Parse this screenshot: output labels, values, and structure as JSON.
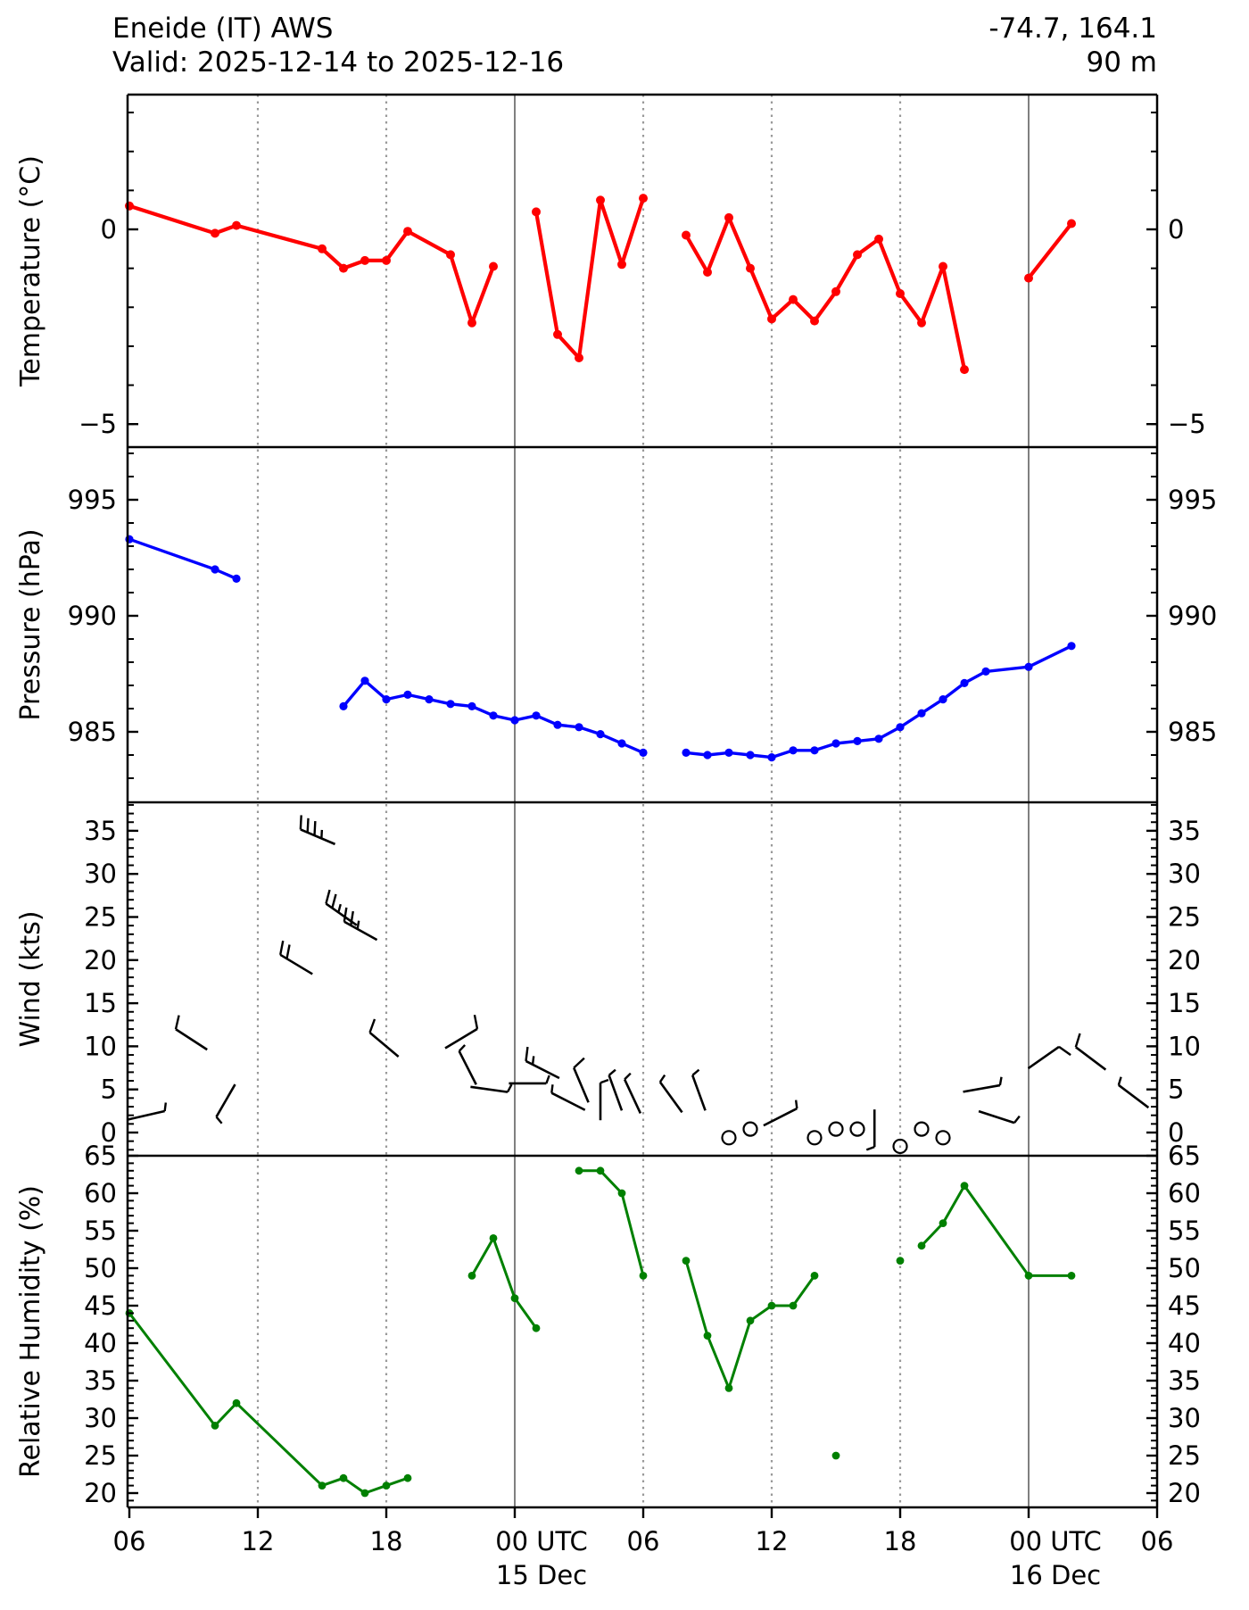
{
  "header": {
    "station": "Eneide (IT) AWS",
    "valid": "Valid: 2025-12-14 to 2025-12-16",
    "coords": "-74.7, 164.1",
    "elevation": "90 m"
  },
  "x_axis": {
    "unit": "hours since 2025-12-14 06:00 UTC",
    "ticks": [
      {
        "t": 0,
        "label": "06"
      },
      {
        "t": 6,
        "label": "12"
      },
      {
        "t": 12,
        "label": "18"
      },
      {
        "t": 18,
        "label": "00 UTC",
        "sub": "15 Dec"
      },
      {
        "t": 24,
        "label": "06"
      },
      {
        "t": 30,
        "label": "12"
      },
      {
        "t": 36,
        "label": "18"
      },
      {
        "t": 42,
        "label": "00 UTC",
        "sub": "16 Dec"
      },
      {
        "t": 48,
        "label": "06"
      }
    ],
    "gridlines": [
      {
        "t": 6,
        "style": "dotted"
      },
      {
        "t": 12,
        "style": "dotted"
      },
      {
        "t": 18,
        "style": "solid"
      },
      {
        "t": 24,
        "style": "dotted"
      },
      {
        "t": 30,
        "style": "dotted"
      },
      {
        "t": 36,
        "style": "dotted"
      },
      {
        "t": 42,
        "style": "solid"
      }
    ]
  },
  "chart_data": [
    {
      "type": "line",
      "id": "temperature",
      "ylabel": "Temperature (°C)",
      "color": "#ff0000",
      "ylim": [
        -5.6,
        3.5
      ],
      "yticks_major": [
        0,
        -5
      ],
      "ytick_labels": [
        "0",
        "−5"
      ],
      "yticks_minor_step": 1,
      "segments": [
        [
          [
            0,
            0.6
          ],
          [
            4,
            -0.1
          ],
          [
            5,
            0.1
          ],
          [
            9,
            -0.5
          ],
          [
            10,
            -1.0
          ],
          [
            11,
            -0.8
          ],
          [
            12,
            -0.8
          ],
          [
            13,
            -0.05
          ],
          [
            15,
            -0.65
          ],
          [
            16,
            -2.4
          ],
          [
            17,
            -0.95
          ]
        ],
        [
          [
            19,
            0.45
          ],
          [
            20,
            -2.7
          ],
          [
            21,
            -3.3
          ],
          [
            22,
            0.75
          ],
          [
            23,
            -0.9
          ],
          [
            24,
            0.8
          ]
        ],
        [
          [
            26,
            -0.15
          ],
          [
            27,
            -1.1
          ],
          [
            28,
            0.3
          ],
          [
            29,
            -1.0
          ],
          [
            30,
            -2.3
          ],
          [
            31,
            -1.8
          ],
          [
            32,
            -2.35
          ],
          [
            33,
            -1.6
          ],
          [
            34,
            -0.65
          ],
          [
            35,
            -0.25
          ],
          [
            36,
            -1.65
          ],
          [
            37,
            -2.4
          ],
          [
            38,
            -0.95
          ],
          [
            39,
            -3.6
          ]
        ],
        [
          [
            42,
            -1.25
          ],
          [
            44,
            0.15
          ]
        ]
      ]
    },
    {
      "type": "line",
      "id": "pressure",
      "ylabel": "Pressure (hPa)",
      "color": "#0000ff",
      "ylim": [
        981.9,
        997.3
      ],
      "yticks_major": [
        995,
        990,
        985
      ],
      "ytick_labels": [
        "995",
        "990",
        "985"
      ],
      "yticks_minor_step": 1,
      "segments": [
        [
          [
            0,
            993.3
          ],
          [
            4,
            992.0
          ],
          [
            5,
            991.6
          ]
        ],
        [
          [
            10,
            986.1
          ],
          [
            11,
            987.2
          ],
          [
            12,
            986.4
          ],
          [
            13,
            986.6
          ],
          [
            14,
            986.4
          ],
          [
            15,
            986.2
          ],
          [
            16,
            986.1
          ],
          [
            17,
            985.7
          ],
          [
            18,
            985.5
          ],
          [
            19,
            985.7
          ],
          [
            20,
            985.3
          ],
          [
            21,
            985.2
          ],
          [
            22,
            984.9
          ],
          [
            23,
            984.5
          ],
          [
            24,
            984.1
          ]
        ],
        [
          [
            26,
            984.1
          ],
          [
            27,
            984.0
          ],
          [
            28,
            984.1
          ],
          [
            29,
            984.0
          ],
          [
            30,
            983.9
          ],
          [
            31,
            984.2
          ],
          [
            32,
            984.2
          ],
          [
            33,
            984.5
          ],
          [
            34,
            984.6
          ],
          [
            35,
            984.7
          ],
          [
            36,
            985.2
          ],
          [
            37,
            985.8
          ],
          [
            38,
            986.4
          ],
          [
            39,
            987.1
          ],
          [
            40,
            987.6
          ],
          [
            42,
            987.8
          ],
          [
            44,
            988.7
          ]
        ]
      ]
    },
    {
      "type": "barb",
      "id": "wind",
      "ylabel": "Wind (kts)",
      "color": "#000000",
      "ylim": [
        -2.7,
        38.3
      ],
      "yticks_major": [
        35,
        30,
        25,
        20,
        15,
        10,
        5,
        0
      ],
      "ytick_labels": [
        "35",
        "30",
        "25",
        "20",
        "15",
        "10",
        "5",
        "0"
      ],
      "yticks_minor_step": 1,
      "barbs": [
        {
          "t": 0.8,
          "kts": 2.0,
          "angle": 13,
          "feathers": [
            "h"
          ],
          "side": 1
        },
        {
          "t": 2.9,
          "kts": 10.8,
          "angle": 147,
          "feathers": [
            "f"
          ],
          "side": -1
        },
        {
          "t": 4.5,
          "kts": 3.7,
          "angle": 240,
          "feathers": [
            "h"
          ],
          "side": 1
        },
        {
          "t": 7.8,
          "kts": 19.5,
          "angle": 149,
          "feathers": [
            "f",
            "f"
          ],
          "side": -1
        },
        {
          "t": 8.8,
          "kts": 34.3,
          "angle": 157,
          "feathers": [
            "f",
            "f",
            "f",
            "h"
          ],
          "side": -1
        },
        {
          "t": 9.9,
          "kts": 25.3,
          "angle": 145,
          "feathers": [
            "f",
            "f",
            "h"
          ],
          "side": -1
        },
        {
          "t": 10.8,
          "kts": 23.4,
          "angle": 151,
          "feathers": [
            "f",
            "f",
            "h"
          ],
          "side": -1
        },
        {
          "t": 11.9,
          "kts": 10.2,
          "angle": 140,
          "feathers": [
            "f"
          ],
          "side": -1
        },
        {
          "t": 15.5,
          "kts": 10.9,
          "angle": 31,
          "feathers": [
            "f"
          ],
          "side": 1
        },
        {
          "t": 15.8,
          "kts": 7.5,
          "angle": 117,
          "feathers": [
            "h"
          ],
          "side": -1
        },
        {
          "t": 16.8,
          "kts": 5.0,
          "angle": -8,
          "feathers": [
            "h"
          ],
          "side": 1
        },
        {
          "t": 18.6,
          "kts": 5.7,
          "angle": 0,
          "feathers": [
            "h"
          ],
          "side": 1
        },
        {
          "t": 19.3,
          "kts": 7.3,
          "angle": 153,
          "feathers": [
            "f",
            "h"
          ],
          "side": -1
        },
        {
          "t": 20.5,
          "kts": 3.6,
          "angle": 153,
          "feathers": [
            "h"
          ],
          "side": -1
        },
        {
          "t": 21.1,
          "kts": 5.5,
          "angle": 113,
          "feathers": [
            "f"
          ],
          "side": -1
        },
        {
          "t": 22.0,
          "kts": 3.6,
          "angle": 90,
          "feathers": [
            "h"
          ],
          "side": -1
        },
        {
          "t": 22.7,
          "kts": 4.6,
          "angle": 110,
          "feathers": [
            "h"
          ],
          "side": -1
        },
        {
          "t": 23.5,
          "kts": 4.2,
          "angle": 115,
          "feathers": [
            "h"
          ],
          "side": -1
        },
        {
          "t": 25.3,
          "kts": 4.1,
          "angle": 126,
          "feathers": [
            "h"
          ],
          "side": -1
        },
        {
          "t": 26.6,
          "kts": 4.6,
          "angle": 110,
          "feathers": [
            "h"
          ],
          "side": -1
        },
        {
          "t": 30.4,
          "kts": 1.8,
          "angle": 27,
          "feathers": [
            "h"
          ],
          "side": 1
        },
        {
          "t": 34.8,
          "kts": 0.5,
          "angle": 270,
          "feathers": [
            "h"
          ],
          "side": -1
        },
        {
          "t": 39.8,
          "kts": 5.1,
          "angle": 10,
          "feathers": [
            "h"
          ],
          "side": 1
        },
        {
          "t": 40.5,
          "kts": 1.8,
          "angle": -18,
          "feathers": [
            "h"
          ],
          "side": 1
        },
        {
          "t": 42.7,
          "kts": 8.7,
          "angle": 35,
          "feathers": [
            "f"
          ],
          "side": -1
        },
        {
          "t": 44.9,
          "kts": 8.6,
          "angle": 143,
          "feathers": [
            "f"
          ],
          "side": -1
        },
        {
          "t": 46.9,
          "kts": 4.2,
          "angle": 143,
          "feathers": [
            "h"
          ],
          "side": -1
        }
      ],
      "calm_circles": [
        {
          "t": 28,
          "kts": -0.6
        },
        {
          "t": 29,
          "kts": 0.4
        },
        {
          "t": 32,
          "kts": -0.6
        },
        {
          "t": 33,
          "kts": 0.4
        },
        {
          "t": 34,
          "kts": 0.4
        },
        {
          "t": 36,
          "kts": -1.6
        },
        {
          "t": 37,
          "kts": 0.4
        },
        {
          "t": 38,
          "kts": -0.6
        }
      ]
    },
    {
      "type": "line",
      "id": "humidity",
      "ylabel": "Relative Humidity (%)",
      "color": "#008000",
      "ylim": [
        18.1,
        65.0
      ],
      "yticks_major": [
        65,
        60,
        55,
        50,
        45,
        40,
        35,
        30,
        25,
        20
      ],
      "ytick_labels": [
        "65",
        "60",
        "55",
        "50",
        "45",
        "40",
        "35",
        "30",
        "25",
        "20"
      ],
      "yticks_minor_step": 1,
      "segments": [
        [
          [
            0,
            44
          ],
          [
            4,
            29
          ],
          [
            5,
            32
          ],
          [
            9,
            21
          ],
          [
            10,
            22
          ],
          [
            11,
            20
          ],
          [
            12,
            21
          ],
          [
            13,
            22
          ]
        ],
        [
          [
            16,
            49
          ],
          [
            17,
            54
          ],
          [
            18,
            46
          ],
          [
            19,
            42
          ]
        ],
        [
          [
            21,
            63
          ],
          [
            22,
            63
          ],
          [
            23,
            60
          ],
          [
            24,
            49
          ]
        ],
        [
          [
            26,
            51
          ],
          [
            27,
            41
          ],
          [
            28,
            34
          ],
          [
            29,
            43
          ],
          [
            30,
            45
          ],
          [
            31,
            45
          ],
          [
            32,
            49
          ]
        ],
        [
          [
            33,
            25
          ]
        ],
        [
          [
            36,
            51
          ]
        ],
        [
          [
            37,
            53
          ],
          [
            38,
            56
          ],
          [
            39,
            61
          ],
          [
            42,
            49
          ],
          [
            44,
            49
          ]
        ]
      ]
    }
  ]
}
